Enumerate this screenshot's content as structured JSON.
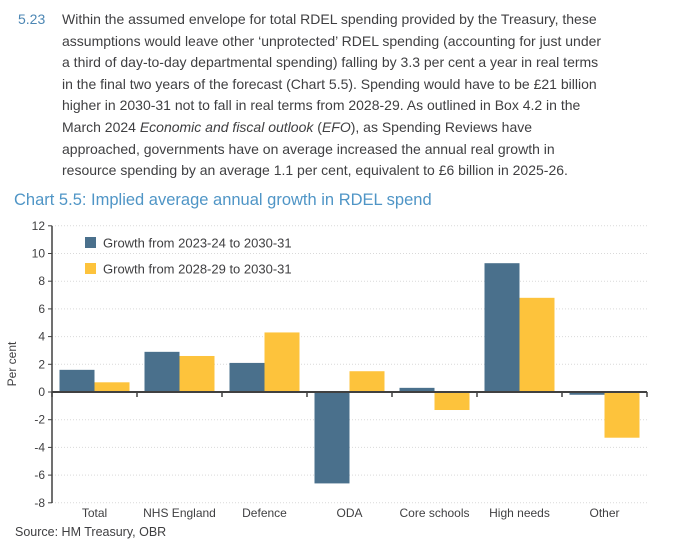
{
  "paragraph": {
    "number": "5.23",
    "text_part1": "Within the assumed envelope for total RDEL spending provided by the Treasury, these assumptions would leave other ‘unprotected’ RDEL spending (accounting for just under a third of day-to-day departmental spending) falling by 3.3 per cent a year in real terms in the final two years of the forecast (Chart 5.5). Spending would have to be £21 billion higher in 2030-31 not to fall in real terms from 2028-29. As outlined in Box 4.2 in the March 2024 ",
    "italic_title": "Economic and fiscal outlook",
    "text_part2": " (",
    "italic_abbrev": "EFO",
    "text_part3": "), as Spending Reviews have approached, governments have on average increased the annual real growth in resource spending by an average 1.1 per cent, equivalent to £6 billion in 2025-26."
  },
  "chart": {
    "title": "Chart 5.5: Implied average annual growth in RDEL spend",
    "source": "Source: HM Treasury, OBR"
  },
  "chart_data": {
    "type": "bar",
    "title": "Chart 5.5: Implied average annual growth in RDEL spend",
    "categories": [
      "Total",
      "NHS England",
      "Defence",
      "ODA",
      "Core schools",
      "High needs",
      "Other"
    ],
    "series": [
      {
        "name": "Growth from 2023-24 to 2030-31",
        "color": "#4a708c",
        "values": [
          1.6,
          2.9,
          2.1,
          -6.6,
          0.3,
          9.3,
          -0.2
        ]
      },
      {
        "name": "Growth from 2028-29 to 2030-31",
        "color": "#fdc33c",
        "values": [
          0.7,
          2.6,
          4.3,
          1.5,
          -1.3,
          6.8,
          -3.3
        ]
      }
    ],
    "xlabel": "",
    "ylabel": "Per cent",
    "ylim": [
      -8,
      12
    ],
    "ytick_step": 2,
    "grid": "horizontal-dotted",
    "legend_position": "top-left-inside"
  },
  "colors": {
    "page_background": "#ffffff",
    "body_text": "#3f3f41",
    "paragraph_number": "#4d87b4",
    "chart_title": "#4f95c6",
    "axis": "#404040",
    "gridline": "#d9d9d9",
    "bar_blue": "#4a708c",
    "bar_yellow": "#fdc33c"
  }
}
